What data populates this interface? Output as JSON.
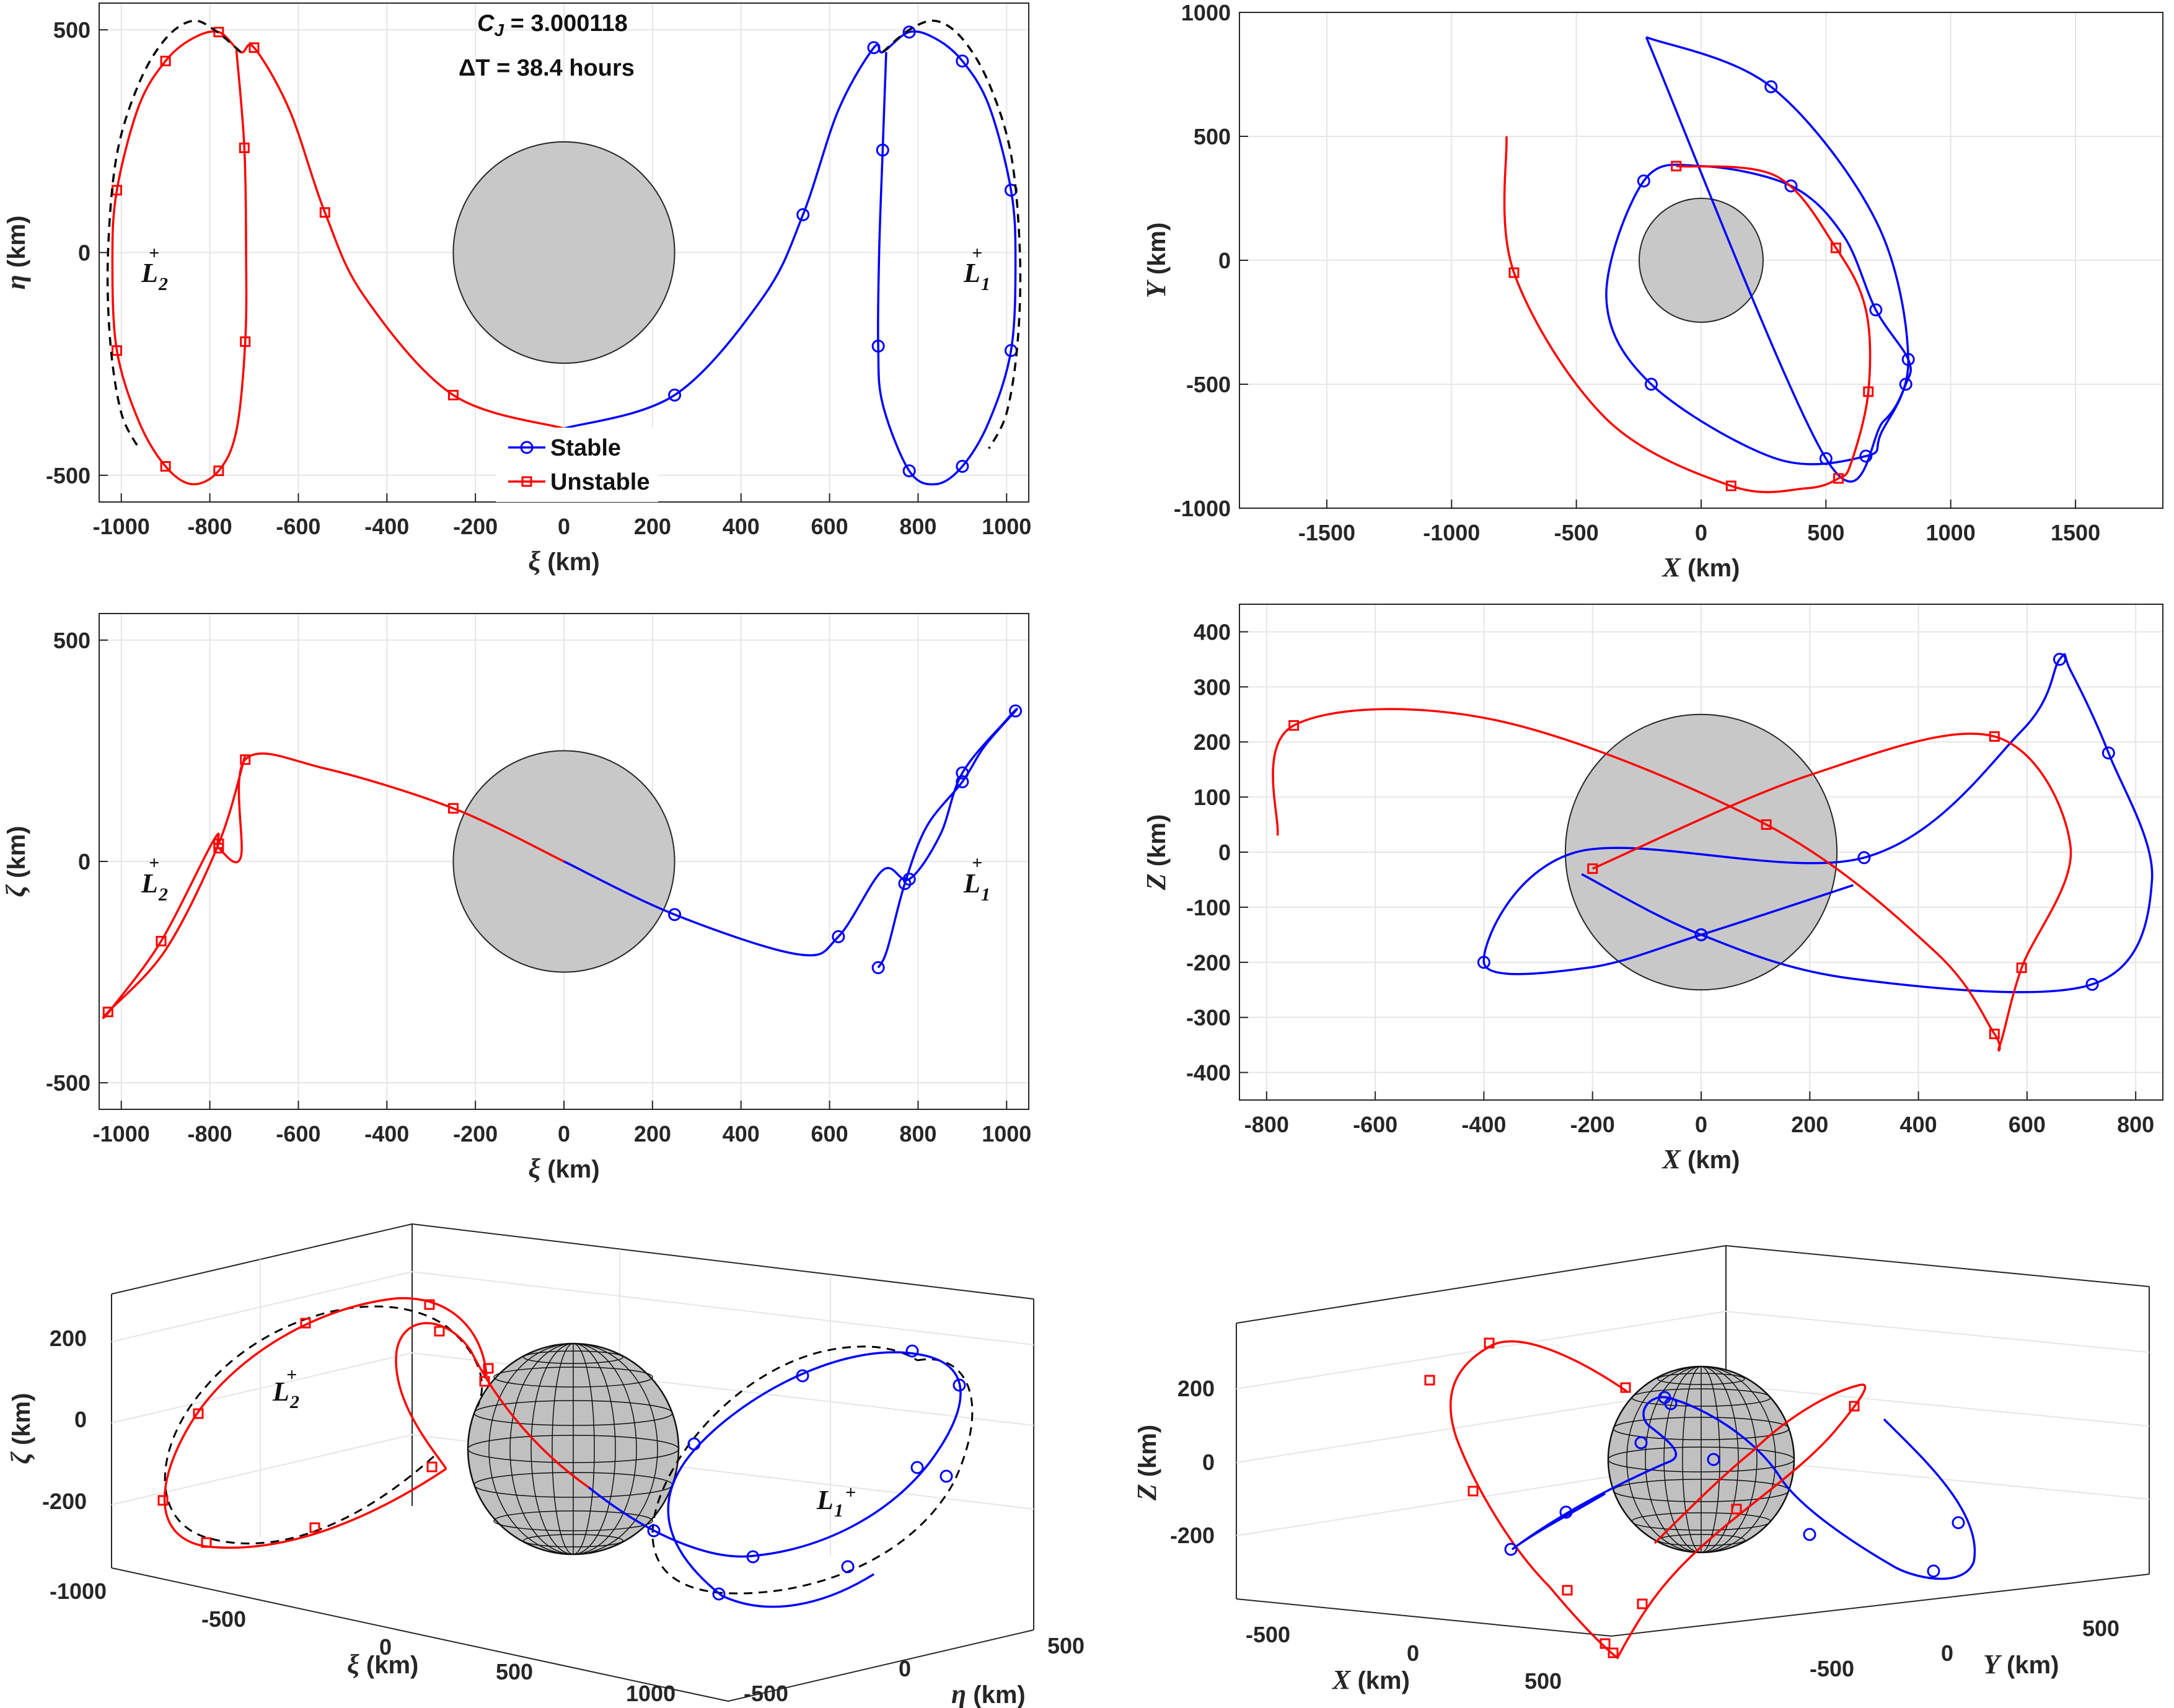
{
  "figure": {
    "jacobi_label": "C",
    "jacobi_sub": "J",
    "jacobi_value": " = 3.000118",
    "dt_label": "ΔT = 38.4 hours",
    "legend": {
      "stable": "Stable",
      "unstable": "Unstable"
    },
    "lpoints": {
      "l1": "L",
      "l1_sub": "1",
      "l2": "L",
      "l2_sub": "2",
      "plus": "+"
    }
  },
  "chart_data": [
    {
      "id": "xi-eta",
      "type": "line",
      "xlabel_sym": "ξ",
      "xlabel_unit": " (km)",
      "ylabel_sym": "η",
      "ylabel_unit": " (km)",
      "xlim": [
        -1050,
        1050
      ],
      "ylim": [
        -560,
        560
      ],
      "xticks": [
        -1000,
        -800,
        -600,
        -400,
        -200,
        0,
        200,
        400,
        600,
        800,
        1000
      ],
      "yticks": [
        -500,
        0,
        500
      ],
      "grid": true,
      "legend": "bottom-center",
      "series": [
        {
          "name": "Stable",
          "color": "#0000ff",
          "marker": "circle",
          "x": [
            0,
            250,
            450,
            540,
            620,
            700,
            720,
            780,
            840,
            900,
            960,
            1010,
            1020,
            1010,
            960,
            900,
            840,
            780,
            720,
            710,
            712,
            720,
            728
          ],
          "y": [
            -395,
            -320,
            -100,
            85,
            320,
            460,
            450,
            495,
            480,
            430,
            330,
            140,
            -20,
            -220,
            -380,
            -480,
            -520,
            -490,
            -340,
            -210,
            0,
            230,
            450
          ]
        },
        {
          "name": "Unstable",
          "color": "#ff0000",
          "marker": "square",
          "x": [
            0,
            -250,
            -450,
            -540,
            -620,
            -700,
            -730,
            -780,
            -840,
            -900,
            -960,
            -1010,
            -1020,
            -1010,
            -960,
            -900,
            -840,
            -780,
            -740,
            -720,
            -718,
            -722,
            -740
          ],
          "y": [
            -395,
            -320,
            -100,
            90,
            320,
            460,
            450,
            495,
            480,
            430,
            330,
            140,
            -20,
            -220,
            -380,
            -480,
            -520,
            -490,
            -400,
            -200,
            0,
            235,
            455
          ]
        },
        {
          "name": "",
          "color": "#000000",
          "style": "dashed",
          "x": [
            720,
            780,
            840,
            900,
            960,
            1010,
            1030,
            1025,
            1000,
            960
          ],
          "y": [
            450,
            500,
            520,
            480,
            380,
            220,
            0,
            -200,
            -360,
            -440
          ]
        },
        {
          "name": "",
          "color": "#000000",
          "style": "dashed",
          "x": [
            -730,
            -790,
            -840,
            -900,
            -960,
            -1010,
            -1030,
            -1025,
            -1000,
            -960
          ],
          "y": [
            450,
            500,
            520,
            480,
            380,
            220,
            0,
            -200,
            -360,
            -440
          ]
        }
      ],
      "body_radius": 250
    },
    {
      "id": "X-Y",
      "type": "line",
      "xlabel_sym": "X",
      "xlabel_unit": " (km)",
      "ylabel_sym": "Y",
      "ylabel_unit": " (km)",
      "xlim": [
        -1850,
        1850
      ],
      "ylim": [
        -1000,
        1000
      ],
      "xticks": [
        -1500,
        -1000,
        -500,
        0,
        500,
        1000,
        1500
      ],
      "yticks": [
        -1000,
        -500,
        0,
        500,
        1000
      ],
      "grid": true,
      "series": [
        {
          "name": "Stable",
          "color": "#0000ff",
          "marker": "circle",
          "x": [
            -220,
            280,
            700,
            830,
            720,
            660,
            300,
            -200,
            -380,
            -230,
            0,
            360,
            570,
            700,
            830,
            820,
            730,
            500,
            -220
          ],
          "y": [
            900,
            700,
            160,
            -400,
            -700,
            -790,
            -800,
            -500,
            -150,
            320,
            380,
            300,
            100,
            -200,
            -400,
            -500,
            -650,
            -800,
            900
          ]
        },
        {
          "name": "Unstable",
          "color": "#ff0000",
          "marker": "square",
          "x": [
            -780,
            -750,
            -380,
            120,
            420,
            550,
            600,
            670,
            660,
            540,
            300,
            -100
          ],
          "y": [
            500,
            -50,
            -640,
            -910,
            -920,
            -880,
            -820,
            -530,
            -200,
            50,
            340,
            380
          ]
        }
      ],
      "body_radius": 250
    },
    {
      "id": "xi-zeta",
      "type": "line",
      "xlabel_sym": "ξ",
      "xlabel_unit": " (km)",
      "ylabel_sym": "ζ",
      "ylabel_unit": " (km)",
      "xlim": [
        -1050,
        1050
      ],
      "ylim": [
        -560,
        560
      ],
      "xticks": [
        -1000,
        -800,
        -600,
        -400,
        -200,
        0,
        200,
        400,
        600,
        800,
        1000
      ],
      "yticks": [
        -500,
        0,
        500
      ],
      "grid": true,
      "series": [
        {
          "name": "Stable",
          "color": "#0000ff",
          "marker": "circle",
          "x": [
            0,
            250,
            530,
            620,
            720,
            780,
            850,
            900,
            1000,
            1020,
            950,
            900,
            820,
            770,
            730,
            710
          ],
          "y": [
            0,
            -120,
            -210,
            -170,
            -20,
            -40,
            60,
            200,
            320,
            340,
            260,
            180,
            80,
            -50,
            -200,
            -240
          ]
        },
        {
          "name": "Unstable",
          "color": "#ff0000",
          "marker": "square",
          "x": [
            0,
            -250,
            -540,
            -720,
            -730,
            -780,
            -790,
            -910,
            -1020,
            -1030,
            -900,
            -780,
            -720
          ],
          "y": [
            0,
            120,
            210,
            230,
            10,
            30,
            50,
            -180,
            -330,
            -340,
            -200,
            40,
            240
          ]
        }
      ],
      "body_radius": 250
    },
    {
      "id": "X-Z",
      "type": "line",
      "xlabel_sym": "X",
      "xlabel_unit": " (km)",
      "ylabel_sym": "Z",
      "ylabel_unit": " (km)",
      "xlim": [
        -850,
        850
      ],
      "ylim": [
        -450,
        450
      ],
      "xticks": [
        -800,
        -600,
        -400,
        -200,
        0,
        200,
        400,
        600,
        800
      ],
      "yticks": [
        -400,
        -300,
        -200,
        -100,
        0,
        100,
        200,
        300,
        400
      ],
      "grid": true,
      "series": [
        {
          "name": "Stable",
          "color": "#0000ff",
          "marker": "circle",
          "x": [
            -220,
            0,
            280,
            720,
            830,
            750,
            680,
            660,
            590,
            300,
            -230,
            -400,
            -210,
            0,
            280
          ],
          "y": [
            -40,
            -150,
            -230,
            -240,
            -50,
            180,
            330,
            350,
            220,
            -10,
            0,
            -200,
            -210,
            -150,
            -60
          ]
        },
        {
          "name": "Unstable",
          "color": "#ff0000",
          "marker": "square",
          "x": [
            -780,
            -750,
            -380,
            120,
            430,
            540,
            550,
            590,
            680,
            540,
            200,
            -200
          ],
          "y": [
            30,
            230,
            240,
            50,
            -180,
            -330,
            -350,
            -210,
            10,
            210,
            140,
            -30
          ]
        }
      ],
      "body_radius": 250
    }
  ],
  "views3d": [
    {
      "id": "xyz-rot",
      "xlabel_sym": "ξ",
      "xlabel_unit": " (km)",
      "ylabel_sym": "η",
      "ylabel_unit": " (km)",
      "zlabel_sym": "ζ",
      "zlabel_unit": " (km)",
      "xticks": [
        "-1000",
        "-500",
        "0",
        "500",
        "1000"
      ],
      "yticks": [
        "-500",
        "0",
        "500"
      ],
      "zticks": [
        "200",
        "0",
        "-200"
      ]
    },
    {
      "id": "XYZ",
      "xlabel_sym": "X",
      "xlabel_unit": " (km)",
      "ylabel_sym": "Y",
      "ylabel_unit": " (km)",
      "zlabel_sym": "Z",
      "zlabel_unit": " (km)",
      "xticks": [
        "-500",
        "0",
        "500"
      ],
      "yticks": [
        "-500",
        "0",
        "500"
      ],
      "zticks": [
        "200",
        "0",
        "-200"
      ]
    }
  ]
}
